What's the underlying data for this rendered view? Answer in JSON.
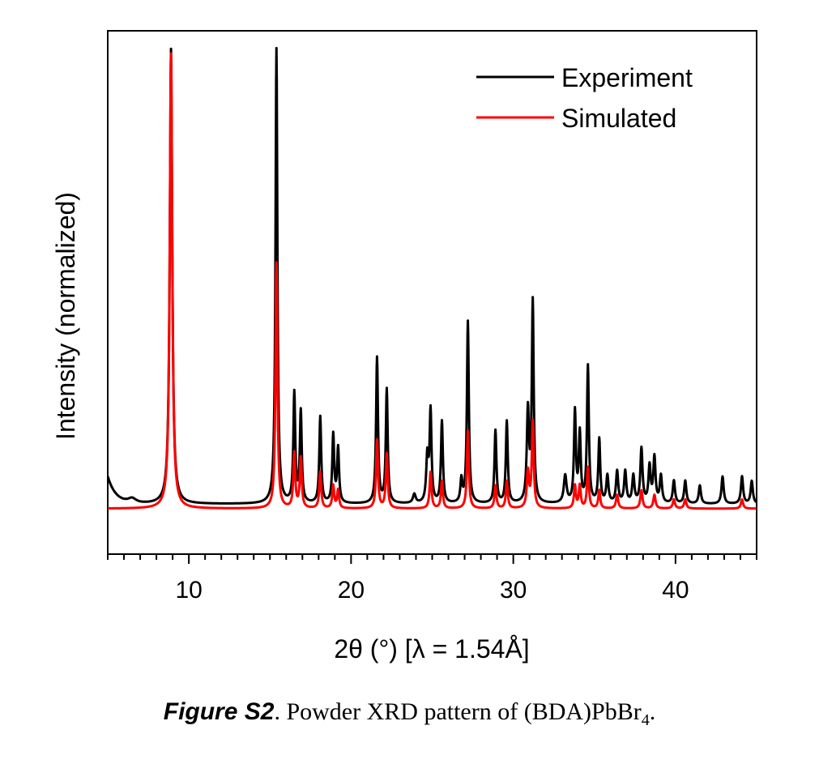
{
  "figure": {
    "caption_label": "Figure S2",
    "caption_text": ". Powder XRD pattern of (BDA)PbBr",
    "caption_subscript": "4",
    "caption_end": "."
  },
  "chart_data": {
    "type": "line",
    "xlabel": "2θ (°) [λ = 1.54Å]",
    "ylabel": "Intensity (normalized)",
    "xlim": [
      5,
      45
    ],
    "ylim": [
      -0.1,
      1.05
    ],
    "x_ticks": [
      10,
      20,
      30,
      40
    ],
    "y_ticks_shown": false,
    "grid": false,
    "legend_position": "top-right",
    "series": [
      {
        "name": "Experiment",
        "color": "#000000",
        "baseline": 0.01,
        "start_hump": {
          "x": 5.0,
          "height": 0.06,
          "decay": 0.5
        },
        "peaks": [
          {
            "x": 6.5,
            "height": 0.01,
            "width": 0.3
          },
          {
            "x": 8.9,
            "height": 1.0,
            "width": 0.09
          },
          {
            "x": 15.4,
            "height": 1.0,
            "width": 0.07
          },
          {
            "x": 16.5,
            "height": 0.24,
            "width": 0.07
          },
          {
            "x": 16.9,
            "height": 0.2,
            "width": 0.07
          },
          {
            "x": 18.1,
            "height": 0.19,
            "width": 0.07
          },
          {
            "x": 18.9,
            "height": 0.15,
            "width": 0.07
          },
          {
            "x": 19.2,
            "height": 0.12,
            "width": 0.07
          },
          {
            "x": 21.6,
            "height": 0.32,
            "width": 0.07
          },
          {
            "x": 22.2,
            "height": 0.25,
            "width": 0.07
          },
          {
            "x": 23.9,
            "height": 0.02,
            "width": 0.1
          },
          {
            "x": 24.7,
            "height": 0.1,
            "width": 0.08
          },
          {
            "x": 24.9,
            "height": 0.2,
            "width": 0.07
          },
          {
            "x": 25.6,
            "height": 0.18,
            "width": 0.07
          },
          {
            "x": 26.8,
            "height": 0.05,
            "width": 0.07
          },
          {
            "x": 27.2,
            "height": 0.4,
            "width": 0.07
          },
          {
            "x": 28.9,
            "height": 0.16,
            "width": 0.07
          },
          {
            "x": 29.6,
            "height": 0.18,
            "width": 0.07
          },
          {
            "x": 30.9,
            "height": 0.2,
            "width": 0.08
          },
          {
            "x": 31.2,
            "height": 0.44,
            "width": 0.07
          },
          {
            "x": 33.2,
            "height": 0.06,
            "width": 0.1
          },
          {
            "x": 33.8,
            "height": 0.2,
            "width": 0.07
          },
          {
            "x": 34.1,
            "height": 0.15,
            "width": 0.07
          },
          {
            "x": 34.6,
            "height": 0.3,
            "width": 0.07
          },
          {
            "x": 35.3,
            "height": 0.14,
            "width": 0.07
          },
          {
            "x": 35.8,
            "height": 0.06,
            "width": 0.08
          },
          {
            "x": 36.4,
            "height": 0.07,
            "width": 0.08
          },
          {
            "x": 36.9,
            "height": 0.07,
            "width": 0.08
          },
          {
            "x": 37.4,
            "height": 0.06,
            "width": 0.08
          },
          {
            "x": 37.9,
            "height": 0.12,
            "width": 0.08
          },
          {
            "x": 38.4,
            "height": 0.08,
            "width": 0.08
          },
          {
            "x": 38.7,
            "height": 0.1,
            "width": 0.08
          },
          {
            "x": 39.1,
            "height": 0.06,
            "width": 0.08
          },
          {
            "x": 39.9,
            "height": 0.05,
            "width": 0.08
          },
          {
            "x": 40.6,
            "height": 0.05,
            "width": 0.08
          },
          {
            "x": 41.5,
            "height": 0.04,
            "width": 0.08
          },
          {
            "x": 42.9,
            "height": 0.06,
            "width": 0.08
          },
          {
            "x": 44.1,
            "height": 0.06,
            "width": 0.08
          },
          {
            "x": 44.7,
            "height": 0.05,
            "width": 0.08
          }
        ]
      },
      {
        "name": "Simulated",
        "color": "#ff0000",
        "baseline": 0.0,
        "peaks": [
          {
            "x": 8.9,
            "height": 1.0,
            "width": 0.09
          },
          {
            "x": 15.4,
            "height": 0.54,
            "width": 0.07
          },
          {
            "x": 16.5,
            "height": 0.12,
            "width": 0.07
          },
          {
            "x": 16.9,
            "height": 0.11,
            "width": 0.07
          },
          {
            "x": 18.1,
            "height": 0.08,
            "width": 0.07
          },
          {
            "x": 18.9,
            "height": 0.05,
            "width": 0.07
          },
          {
            "x": 19.2,
            "height": 0.04,
            "width": 0.07
          },
          {
            "x": 21.6,
            "height": 0.15,
            "width": 0.07
          },
          {
            "x": 22.2,
            "height": 0.12,
            "width": 0.07
          },
          {
            "x": 24.9,
            "height": 0.08,
            "width": 0.07
          },
          {
            "x": 25.6,
            "height": 0.06,
            "width": 0.07
          },
          {
            "x": 27.2,
            "height": 0.17,
            "width": 0.07
          },
          {
            "x": 28.9,
            "height": 0.05,
            "width": 0.07
          },
          {
            "x": 29.6,
            "height": 0.06,
            "width": 0.07
          },
          {
            "x": 30.9,
            "height": 0.08,
            "width": 0.08
          },
          {
            "x": 31.2,
            "height": 0.19,
            "width": 0.07
          },
          {
            "x": 33.8,
            "height": 0.05,
            "width": 0.07
          },
          {
            "x": 34.1,
            "height": 0.05,
            "width": 0.07
          },
          {
            "x": 34.6,
            "height": 0.09,
            "width": 0.07
          },
          {
            "x": 35.3,
            "height": 0.04,
            "width": 0.07
          },
          {
            "x": 36.4,
            "height": 0.03,
            "width": 0.08
          },
          {
            "x": 37.9,
            "height": 0.04,
            "width": 0.08
          },
          {
            "x": 38.7,
            "height": 0.03,
            "width": 0.08
          },
          {
            "x": 39.9,
            "height": 0.02,
            "width": 0.08
          },
          {
            "x": 40.6,
            "height": 0.02,
            "width": 0.08
          },
          {
            "x": 44.1,
            "height": 0.02,
            "width": 0.08
          }
        ]
      }
    ]
  }
}
